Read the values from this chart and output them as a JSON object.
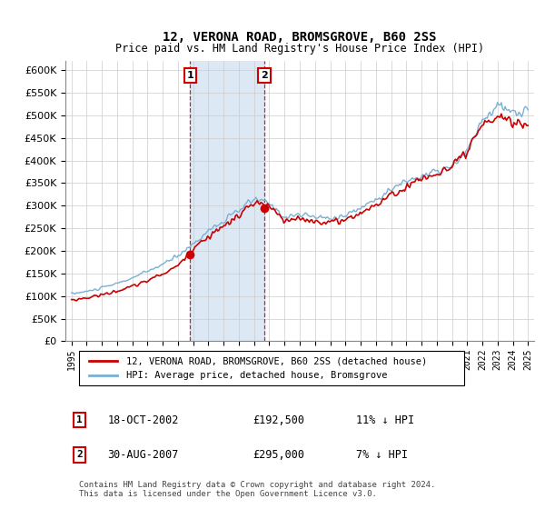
{
  "title": "12, VERONA ROAD, BROMSGROVE, B60 2SS",
  "subtitle": "Price paid vs. HM Land Registry's House Price Index (HPI)",
  "legend_label_red": "12, VERONA ROAD, BROMSGROVE, B60 2SS (detached house)",
  "legend_label_blue": "HPI: Average price, detached house, Bromsgrove",
  "transaction1_date": "18-OCT-2002",
  "transaction1_price": "£192,500",
  "transaction1_hpi": "11% ↓ HPI",
  "transaction1_year": 2002.8,
  "transaction1_value": 192500,
  "transaction2_date": "30-AUG-2007",
  "transaction2_price": "£295,000",
  "transaction2_hpi": "7% ↓ HPI",
  "transaction2_year": 2007.67,
  "transaction2_value": 295000,
  "footer": "Contains HM Land Registry data © Crown copyright and database right 2024.\nThis data is licensed under the Open Government Licence v3.0.",
  "ylim": [
    0,
    620000
  ],
  "yticks": [
    0,
    50000,
    100000,
    150000,
    200000,
    250000,
    300000,
    350000,
    400000,
    450000,
    500000,
    550000,
    600000
  ],
  "shade_color": "#dce9f5",
  "red_color": "#cc0000",
  "blue_color": "#7ab0d4",
  "title_fontsize": 10,
  "subtitle_fontsize": 9
}
